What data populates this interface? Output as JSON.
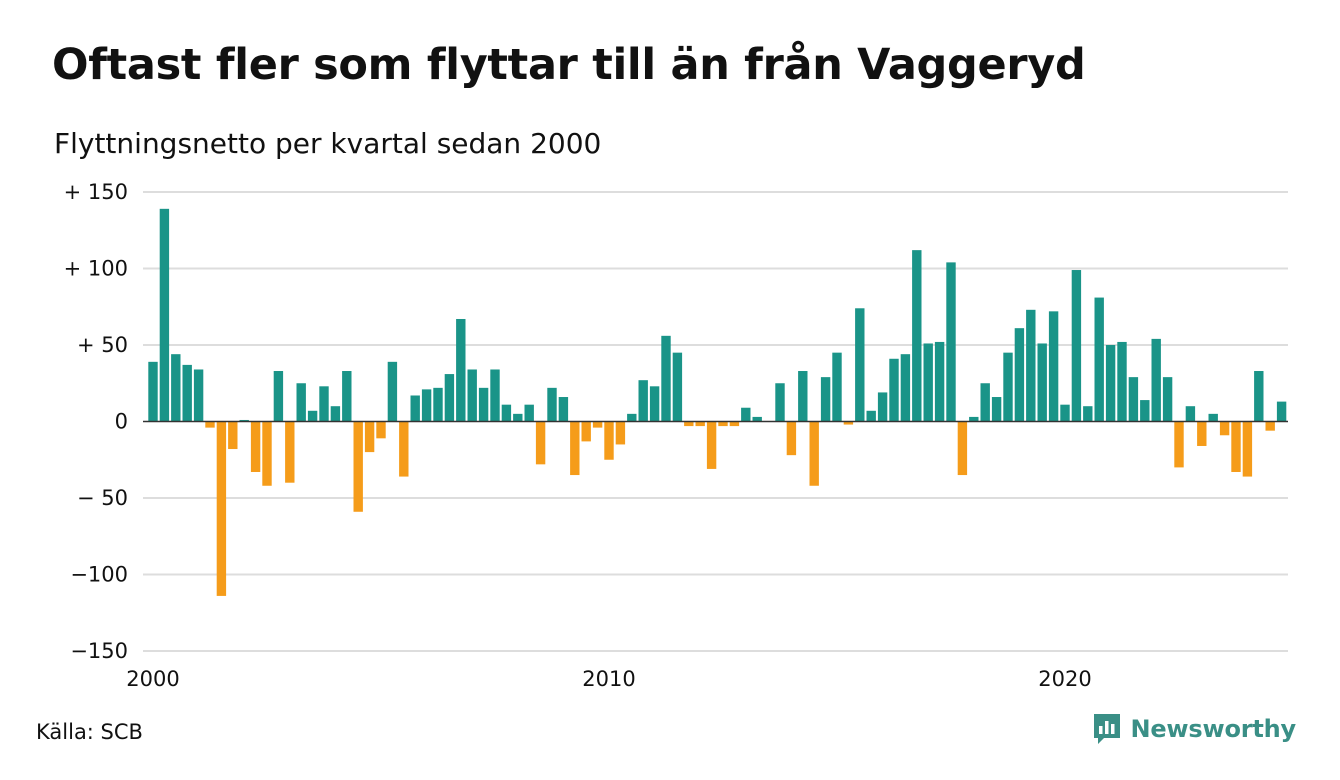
{
  "title": "Oftast fler som flyttar till än från Vaggeryd",
  "subtitle": "Flyttningsnetto per kvartal sedan 2000",
  "source": "Källa: SCB",
  "brand": {
    "name": "Newsworthy",
    "icon": "newsworthy-logo-icon"
  },
  "colors": {
    "positive": "#1a9488",
    "negative": "#f59c1a",
    "grid": "#dddddd",
    "zero_line": "#333333"
  },
  "chart_data": {
    "type": "bar",
    "title": "Oftast fler som flyttar till än från Vaggeryd",
    "subtitle": "Flyttningsnetto per kvartal sedan 2000",
    "xlabel": "",
    "ylabel": "",
    "x_start": "2000 Q1",
    "x_ticks": [
      "2000",
      "2010",
      "2020"
    ],
    "y_ticks": [
      150,
      100,
      50,
      0,
      -50,
      -100,
      -150
    ],
    "y_tick_labels": [
      "+ 150",
      "+ 100",
      "+  50",
      "0",
      "− 50",
      "−100",
      "−150"
    ],
    "ylim": [
      -150,
      150
    ],
    "grid": true,
    "values": [
      39,
      139,
      44,
      37,
      34,
      -4,
      -114,
      -18,
      1,
      -33,
      -42,
      33,
      -40,
      25,
      7,
      23,
      10,
      33,
      -59,
      -20,
      -11,
      39,
      -36,
      17,
      21,
      22,
      31,
      67,
      34,
      22,
      34,
      11,
      5,
      11,
      -28,
      22,
      16,
      -35,
      -13,
      -4,
      -25,
      -15,
      5,
      27,
      23,
      56,
      45,
      -3,
      -3,
      -31,
      -3,
      -3,
      9,
      3,
      0,
      25,
      -22,
      33,
      -42,
      29,
      45,
      -2,
      74,
      7,
      19,
      41,
      44,
      112,
      51,
      52,
      104,
      -35,
      3,
      25,
      16,
      45,
      61,
      73,
      51,
      72,
      11,
      99,
      10,
      81,
      50,
      52,
      29,
      14,
      54,
      29,
      -30,
      10,
      -16,
      5,
      -9,
      -33,
      -36,
      33,
      -6,
      13
    ]
  }
}
